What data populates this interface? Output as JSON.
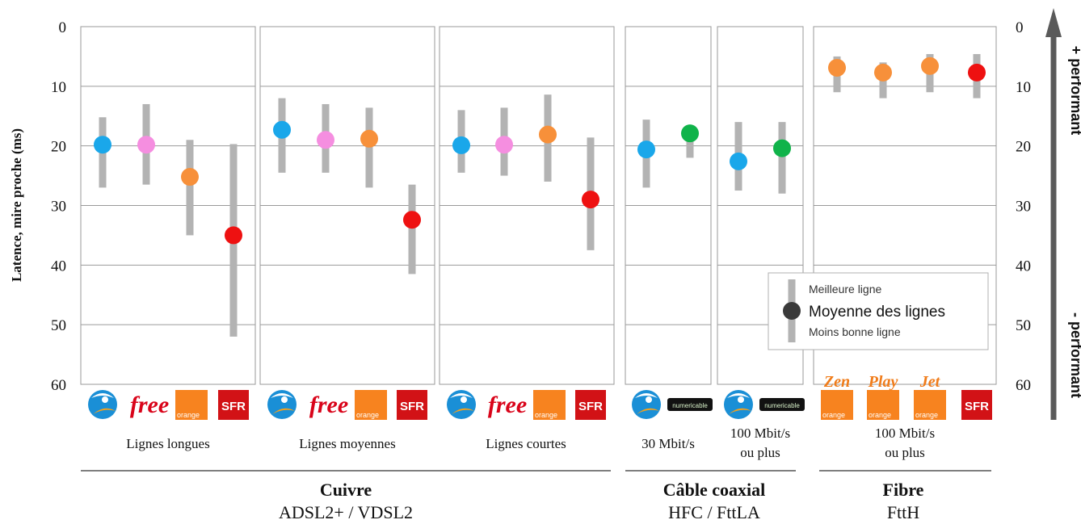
{
  "chart_data": {
    "type": "scatter",
    "ylabel": "Latence, mire proche (ms)",
    "ylim": [
      0,
      60
    ],
    "y_inverted": true,
    "yticks": [
      0,
      10,
      20,
      30,
      40,
      50,
      60
    ],
    "grid": true,
    "right_axis_top": "+ performant",
    "right_axis_bottom": "- performant",
    "legend": {
      "placement": "bottom-right",
      "best": "Meilleure ligne",
      "mean": "Moyenne des lignes",
      "worst": "Moins bonne ligne"
    },
    "operator_colors": {
      "Bouygues": "#1aa7ea",
      "Free": "#f58ee0",
      "Orange": "#f7903a",
      "SFR": "#ee1111",
      "Numericable": "#10b34a"
    },
    "panels": [
      {
        "label": "Lignes longues",
        "series": [
          {
            "operator": "Bouygues",
            "logo": "bouygues-logo",
            "mean": 19.8,
            "best": 15.2,
            "worst": 27
          },
          {
            "operator": "Free",
            "logo": "free-logo",
            "logo_text": "free",
            "mean": 19.8,
            "best": 13,
            "worst": 26.5
          },
          {
            "operator": "Orange",
            "logo": "orange-logo",
            "logo_text": "orange",
            "mean": 25.2,
            "best": 19,
            "worst": 35
          },
          {
            "operator": "SFR",
            "logo": "sfr-logo",
            "logo_text": "SFR",
            "mean": 35,
            "best": 19.7,
            "worst": 52
          }
        ]
      },
      {
        "label": "Lignes moyennes",
        "series": [
          {
            "operator": "Bouygues",
            "logo": "bouygues-logo",
            "mean": 17.3,
            "best": 12,
            "worst": 24.5
          },
          {
            "operator": "Free",
            "logo": "free-logo",
            "logo_text": "free",
            "mean": 19,
            "best": 13,
            "worst": 24.5
          },
          {
            "operator": "Orange",
            "logo": "orange-logo",
            "logo_text": "orange",
            "mean": 18.8,
            "best": 13.6,
            "worst": 27
          },
          {
            "operator": "SFR",
            "logo": "sfr-logo",
            "logo_text": "SFR",
            "mean": 32.4,
            "best": 26.5,
            "worst": 41.5
          }
        ]
      },
      {
        "label": "Lignes courtes",
        "series": [
          {
            "operator": "Bouygues",
            "logo": "bouygues-logo",
            "mean": 19.9,
            "best": 14,
            "worst": 24.5
          },
          {
            "operator": "Free",
            "logo": "free-logo",
            "logo_text": "free",
            "mean": 19.8,
            "best": 13.6,
            "worst": 25
          },
          {
            "operator": "Orange",
            "logo": "orange-logo",
            "logo_text": "orange",
            "mean": 18.1,
            "best": 11.4,
            "worst": 26
          },
          {
            "operator": "SFR",
            "logo": "sfr-logo",
            "logo_text": "SFR",
            "mean": 29,
            "best": 18.6,
            "worst": 37.5
          }
        ]
      },
      {
        "label": "30 Mbit/s",
        "series": [
          {
            "operator": "Bouygues",
            "logo": "bouygues-logo",
            "mean": 20.6,
            "best": 15.6,
            "worst": 27
          },
          {
            "operator": "Numericable",
            "logo": "numericable-logo",
            "logo_text": "numericable",
            "mean": 17.9,
            "best": 17,
            "worst": 22
          }
        ]
      },
      {
        "label_lines": [
          "100 Mbit/s",
          "ou plus"
        ],
        "series": [
          {
            "operator": "Bouygues",
            "logo": "bouygues-logo",
            "mean": 22.6,
            "best": 16,
            "worst": 27.5
          },
          {
            "operator": "Numericable",
            "logo": "numericable-logo",
            "logo_text": "numericable",
            "mean": 20.4,
            "best": 16,
            "worst": 28
          }
        ]
      },
      {
        "label_lines": [
          "100 Mbit/s",
          "ou plus"
        ],
        "series": [
          {
            "operator": "Orange",
            "offer": "Zen",
            "logo": "orange-logo",
            "logo_text": "orange",
            "mean": 6.9,
            "best": 5,
            "worst": 11
          },
          {
            "operator": "Orange",
            "offer": "Play",
            "logo": "orange-logo",
            "logo_text": "orange",
            "mean": 7.7,
            "best": 6,
            "worst": 12
          },
          {
            "operator": "Orange",
            "offer": "Jet",
            "logo": "orange-logo",
            "logo_text": "orange",
            "mean": 6.6,
            "best": 4.6,
            "worst": 11
          },
          {
            "operator": "SFR",
            "logo": "sfr-logo",
            "logo_text": "SFR",
            "mean": 7.7,
            "best": 4.6,
            "worst": 12
          }
        ]
      }
    ],
    "groups": [
      {
        "title": "Cuivre",
        "subtitle": "ADSL2+ / VDSL2"
      },
      {
        "title": "Câble coaxial",
        "subtitle": "HFC / FttLA"
      },
      {
        "title": "Fibre",
        "subtitle": "FttH"
      }
    ]
  }
}
